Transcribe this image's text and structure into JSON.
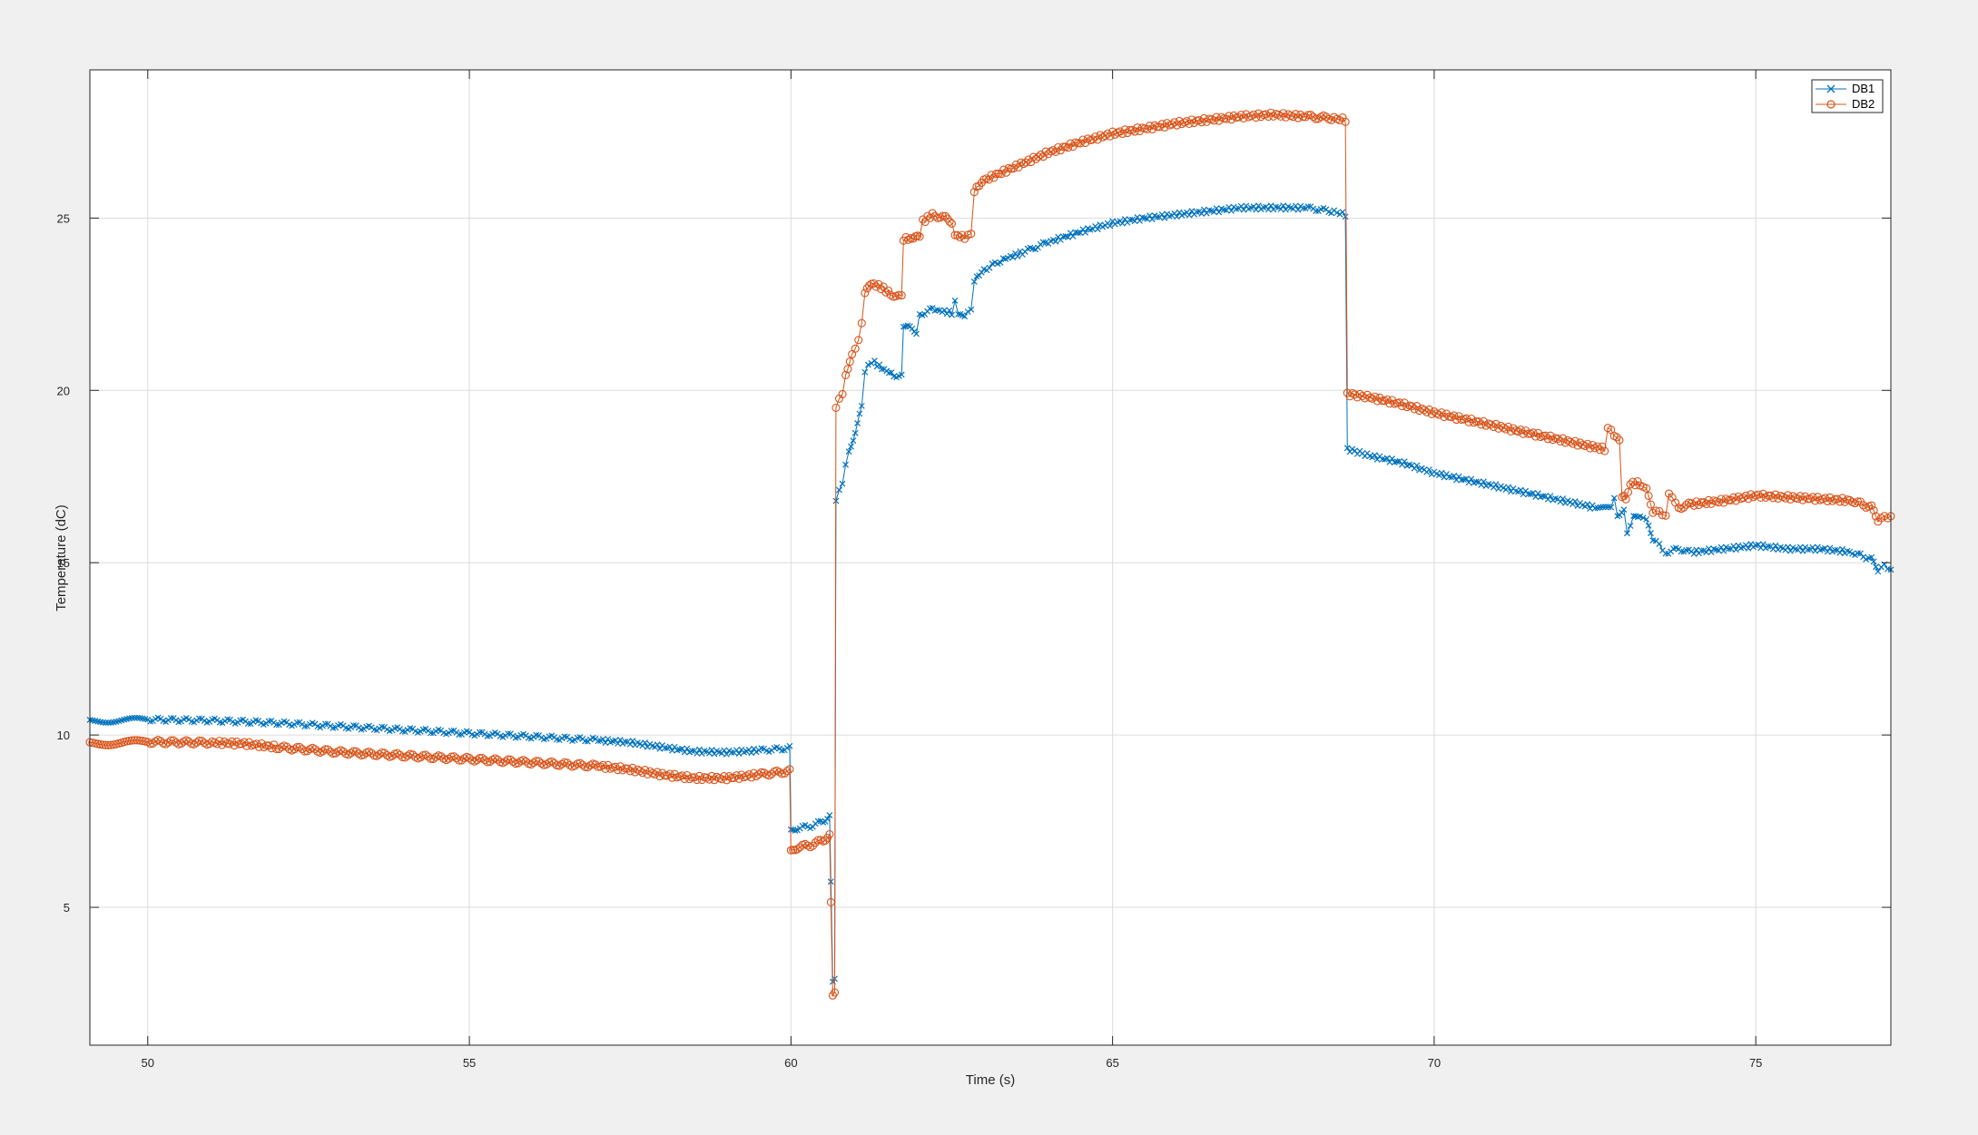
{
  "chart_data": {
    "type": "line",
    "title": "",
    "xlabel": "Time (s)",
    "ylabel": "Temperature (dC)",
    "xlim": [
      49.1,
      77.1
    ],
    "ylim": [
      1.0,
      29.3
    ],
    "xticks": [
      50,
      55,
      60,
      65,
      70,
      75
    ],
    "yticks": [
      5,
      10,
      15,
      20,
      25
    ],
    "grid": true,
    "legend": "top-right",
    "series": [
      {
        "name": "DB1",
        "color": "#0072BD",
        "marker": "x",
        "points": [
          [
            49.1,
            10.4
          ],
          [
            50.0,
            10.45
          ],
          [
            51.0,
            10.42
          ],
          [
            52.0,
            10.35
          ],
          [
            53.0,
            10.25
          ],
          [
            54.0,
            10.15
          ],
          [
            55.0,
            10.05
          ],
          [
            56.0,
            9.95
          ],
          [
            57.0,
            9.85
          ],
          [
            57.5,
            9.78
          ],
          [
            58.0,
            9.65
          ],
          [
            58.5,
            9.52
          ],
          [
            59.0,
            9.5
          ],
          [
            59.5,
            9.55
          ],
          [
            59.98,
            9.62
          ],
          [
            60.0,
            7.2
          ],
          [
            60.1,
            7.3
          ],
          [
            60.3,
            7.35
          ],
          [
            60.5,
            7.5
          ],
          [
            60.6,
            7.65
          ],
          [
            60.62,
            5.7
          ],
          [
            60.65,
            2.9
          ],
          [
            60.68,
            2.9
          ],
          [
            60.7,
            16.8
          ],
          [
            60.8,
            17.3
          ],
          [
            60.85,
            17.9
          ],
          [
            60.9,
            18.2
          ],
          [
            61.0,
            18.8
          ],
          [
            61.1,
            19.5
          ],
          [
            61.15,
            20.5
          ],
          [
            61.2,
            20.8
          ],
          [
            61.3,
            20.8
          ],
          [
            61.45,
            20.6
          ],
          [
            61.6,
            20.45
          ],
          [
            61.72,
            20.4
          ],
          [
            61.75,
            21.9
          ],
          [
            61.85,
            21.8
          ],
          [
            61.95,
            21.7
          ],
          [
            62.0,
            22.2
          ],
          [
            62.2,
            22.35
          ],
          [
            62.35,
            22.3
          ],
          [
            62.5,
            22.25
          ],
          [
            62.55,
            22.6
          ],
          [
            62.6,
            22.15
          ],
          [
            62.7,
            22.2
          ],
          [
            62.8,
            22.3
          ],
          [
            62.85,
            23.2
          ],
          [
            63.0,
            23.5
          ],
          [
            63.3,
            23.8
          ],
          [
            63.6,
            24.0
          ],
          [
            64.0,
            24.3
          ],
          [
            64.5,
            24.6
          ],
          [
            65.0,
            24.85
          ],
          [
            65.5,
            25.0
          ],
          [
            66.0,
            25.1
          ],
          [
            66.5,
            25.2
          ],
          [
            67.0,
            25.3
          ],
          [
            67.5,
            25.3
          ],
          [
            68.0,
            25.3
          ],
          [
            68.4,
            25.2
          ],
          [
            68.62,
            25.1
          ],
          [
            68.65,
            18.3
          ],
          [
            69.0,
            18.1
          ],
          [
            69.5,
            17.9
          ],
          [
            70.0,
            17.6
          ],
          [
            70.5,
            17.4
          ],
          [
            71.0,
            17.2
          ],
          [
            71.5,
            17.0
          ],
          [
            72.0,
            16.8
          ],
          [
            72.5,
            16.6
          ],
          [
            72.75,
            16.55
          ],
          [
            72.8,
            16.9
          ],
          [
            72.85,
            16.4
          ],
          [
            72.95,
            16.5
          ],
          [
            73.0,
            15.9
          ],
          [
            73.1,
            16.3
          ],
          [
            73.2,
            16.4
          ],
          [
            73.3,
            16.2
          ],
          [
            73.4,
            15.7
          ],
          [
            73.5,
            15.5
          ],
          [
            73.6,
            15.3
          ],
          [
            73.8,
            15.4
          ],
          [
            74.0,
            15.3
          ],
          [
            74.5,
            15.4
          ],
          [
            75.0,
            15.5
          ],
          [
            75.5,
            15.4
          ],
          [
            76.0,
            15.4
          ],
          [
            76.5,
            15.3
          ],
          [
            76.8,
            15.1
          ],
          [
            76.9,
            14.8
          ],
          [
            77.0,
            14.9
          ],
          [
            77.1,
            14.8
          ]
        ]
      },
      {
        "name": "DB2",
        "color": "#D95319",
        "marker": "o",
        "points": [
          [
            49.1,
            9.75
          ],
          [
            50.0,
            9.8
          ],
          [
            51.0,
            9.78
          ],
          [
            51.5,
            9.75
          ],
          [
            52.0,
            9.65
          ],
          [
            53.0,
            9.5
          ],
          [
            54.0,
            9.4
          ],
          [
            55.0,
            9.3
          ],
          [
            56.0,
            9.2
          ],
          [
            57.0,
            9.1
          ],
          [
            57.5,
            9.0
          ],
          [
            58.0,
            8.85
          ],
          [
            58.5,
            8.75
          ],
          [
            59.0,
            8.75
          ],
          [
            59.5,
            8.85
          ],
          [
            59.98,
            8.95
          ],
          [
            60.0,
            6.6
          ],
          [
            60.1,
            6.75
          ],
          [
            60.3,
            6.8
          ],
          [
            60.5,
            6.95
          ],
          [
            60.6,
            7.1
          ],
          [
            60.62,
            5.1
          ],
          [
            60.65,
            2.5
          ],
          [
            60.68,
            2.5
          ],
          [
            60.7,
            19.5
          ],
          [
            60.8,
            19.9
          ],
          [
            60.85,
            20.5
          ],
          [
            60.95,
            21.0
          ],
          [
            61.05,
            21.5
          ],
          [
            61.1,
            21.9
          ],
          [
            61.15,
            22.8
          ],
          [
            61.25,
            23.1
          ],
          [
            61.4,
            23.0
          ],
          [
            61.55,
            22.8
          ],
          [
            61.72,
            22.7
          ],
          [
            61.75,
            24.4
          ],
          [
            61.9,
            24.4
          ],
          [
            62.0,
            24.45
          ],
          [
            62.05,
            24.9
          ],
          [
            62.2,
            25.1
          ],
          [
            62.4,
            25.0
          ],
          [
            62.5,
            24.9
          ],
          [
            62.55,
            24.5
          ],
          [
            62.7,
            24.45
          ],
          [
            62.8,
            24.5
          ],
          [
            62.85,
            25.8
          ],
          [
            63.0,
            26.1
          ],
          [
            63.5,
            26.5
          ],
          [
            64.0,
            26.9
          ],
          [
            64.5,
            27.2
          ],
          [
            65.0,
            27.45
          ],
          [
            65.5,
            27.6
          ],
          [
            66.0,
            27.75
          ],
          [
            66.5,
            27.85
          ],
          [
            67.0,
            27.95
          ],
          [
            67.5,
            28.0
          ],
          [
            68.0,
            27.95
          ],
          [
            68.4,
            27.9
          ],
          [
            68.62,
            27.85
          ],
          [
            68.65,
            19.9
          ],
          [
            69.0,
            19.8
          ],
          [
            69.5,
            19.6
          ],
          [
            70.0,
            19.35
          ],
          [
            70.5,
            19.15
          ],
          [
            71.0,
            18.95
          ],
          [
            71.5,
            18.75
          ],
          [
            72.0,
            18.55
          ],
          [
            72.5,
            18.35
          ],
          [
            72.65,
            18.3
          ],
          [
            72.7,
            18.9
          ],
          [
            72.8,
            18.7
          ],
          [
            72.88,
            18.5
          ],
          [
            72.92,
            16.9
          ],
          [
            72.98,
            16.9
          ],
          [
            73.05,
            17.3
          ],
          [
            73.2,
            17.3
          ],
          [
            73.3,
            17.1
          ],
          [
            73.4,
            16.5
          ],
          [
            73.5,
            16.45
          ],
          [
            73.6,
            16.4
          ],
          [
            73.65,
            16.95
          ],
          [
            73.75,
            16.8
          ],
          [
            73.8,
            16.6
          ],
          [
            74.0,
            16.7
          ],
          [
            74.5,
            16.8
          ],
          [
            75.0,
            16.95
          ],
          [
            75.5,
            16.9
          ],
          [
            76.0,
            16.85
          ],
          [
            76.5,
            16.8
          ],
          [
            76.8,
            16.6
          ],
          [
            76.9,
            16.25
          ],
          [
            77.0,
            16.3
          ],
          [
            77.1,
            16.35
          ]
        ]
      }
    ]
  }
}
